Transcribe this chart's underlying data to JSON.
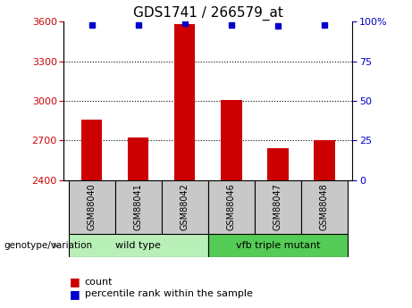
{
  "title": "GDS1741 / 266579_at",
  "samples": [
    "GSM88040",
    "GSM88041",
    "GSM88042",
    "GSM88046",
    "GSM88047",
    "GSM88048"
  ],
  "bar_values": [
    2860,
    2720,
    3580,
    3005,
    2640,
    2700
  ],
  "percentile_values": [
    98,
    98,
    99,
    98,
    97,
    98
  ],
  "ylim_left": [
    2400,
    3600
  ],
  "ylim_right": [
    0,
    100
  ],
  "yticks_left": [
    2400,
    2700,
    3000,
    3300,
    3600
  ],
  "yticks_right": [
    0,
    25,
    50,
    75,
    100
  ],
  "bar_color": "#cc0000",
  "dot_color": "#0000cc",
  "groups": [
    {
      "label": "wild type",
      "color": "#90ee90",
      "darker_color": "#7cdc7c",
      "start": 0,
      "end": 2
    },
    {
      "label": "vfb triple mutant",
      "color": "#90ee90",
      "darker_color": "#55dd55",
      "start": 3,
      "end": 5
    }
  ],
  "group_label_prefix": "genotype/variation",
  "legend_count_label": "count",
  "legend_percentile_label": "percentile rank within the sample",
  "plot_bg": "#ffffff",
  "tick_label_area_bg": "#c8c8c8",
  "title_fontsize": 11,
  "tick_fontsize": 8,
  "sample_fontsize": 7,
  "group_fontsize": 8,
  "legend_fontsize": 8,
  "grid_yticks": [
    2700,
    3000,
    3300
  ],
  "bar_width": 0.45,
  "dot_markersize": 5
}
